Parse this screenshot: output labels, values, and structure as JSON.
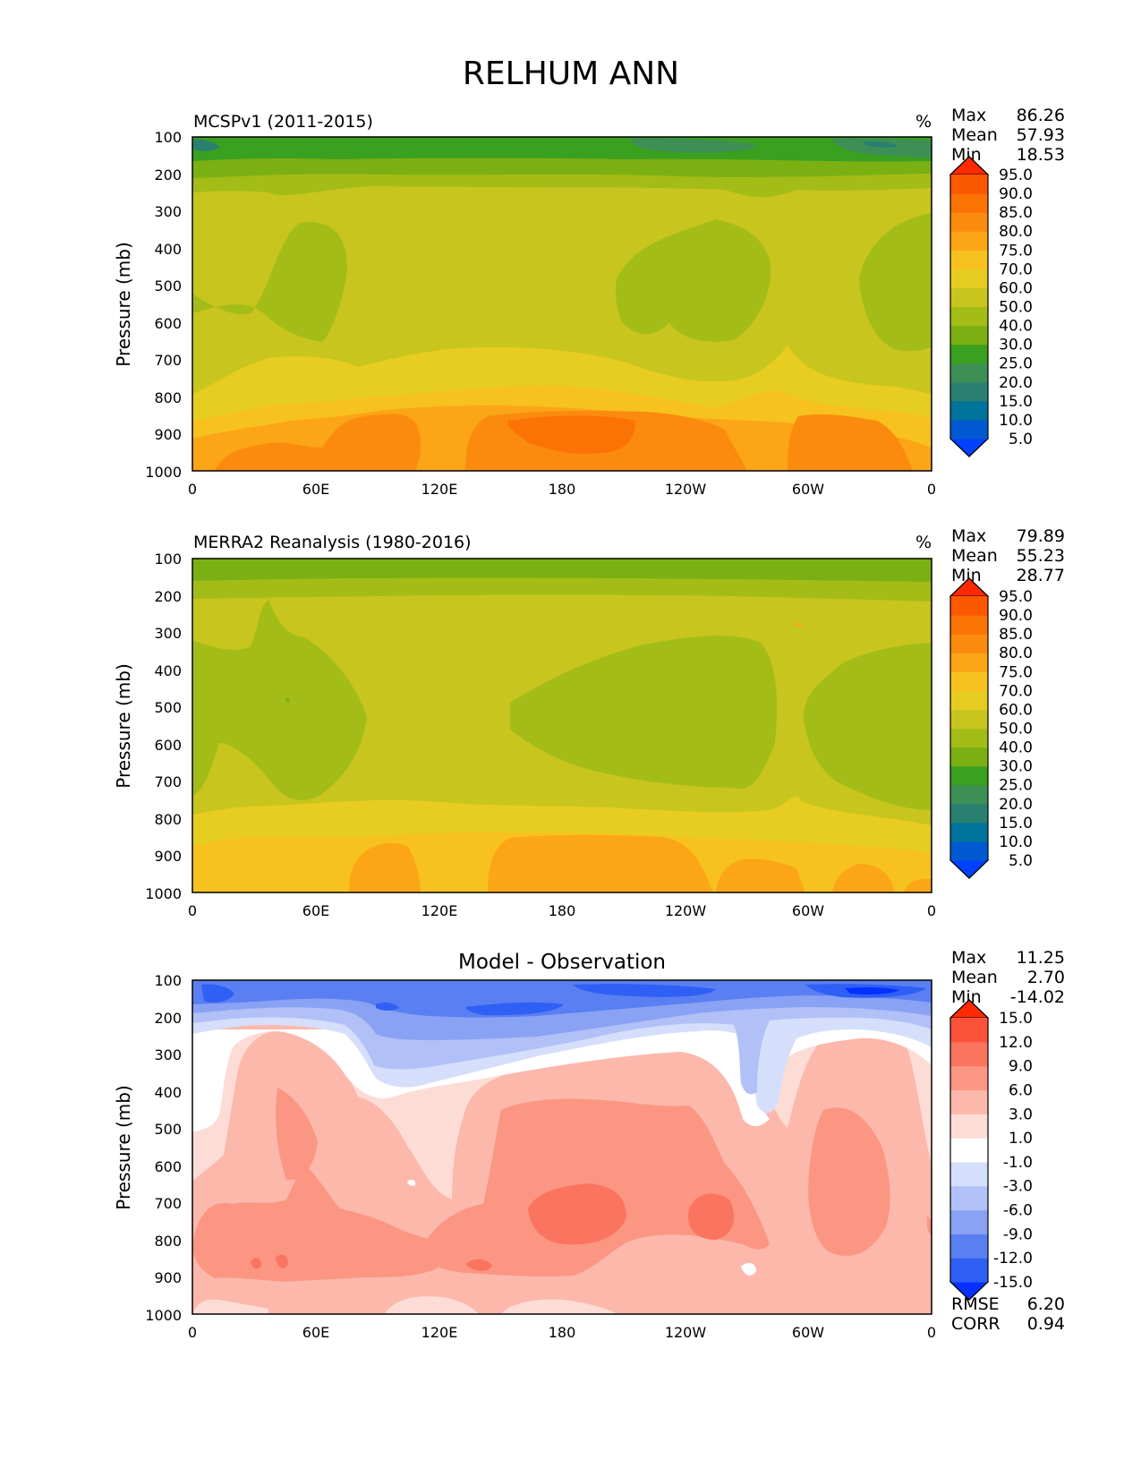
{
  "title": "RELHUM ANN",
  "stat_labels": {
    "max": "Max",
    "mean": "Mean",
    "min": "Min",
    "rmse": "RMSE",
    "corr": "CORR"
  },
  "chart_data": [
    {
      "type": "heatmap",
      "subtitle": "MCSPv1 (2011-2015)",
      "units": "%",
      "ylabel": "Pressure (mb)",
      "x_ticks": [
        "0",
        "60E",
        "120E",
        "180",
        "120W",
        "60W",
        "0"
      ],
      "y_ticks": [
        "100",
        "200",
        "300",
        "400",
        "500",
        "600",
        "700",
        "800",
        "900",
        "1000"
      ],
      "stats": {
        "max": "86.26",
        "mean": "57.93",
        "min": "18.53"
      },
      "levels": [
        "5.0",
        "10.0",
        "15.0",
        "20.0",
        "25.0",
        "30.0",
        "40.0",
        "50.0",
        "60.0",
        "70.0",
        "75.0",
        "80.0",
        "85.0",
        "90.0",
        "95.0"
      ],
      "colors": [
        "#0040ff",
        "#0059d0",
        "#00749b",
        "#2a8070",
        "#3d8f55",
        "#3aa020",
        "#7bb013",
        "#a4bc17",
        "#c8c51e",
        "#e7cc22",
        "#f7c21f",
        "#fba517",
        "#fb8b0e",
        "#fb7205",
        "#fb5800",
        "#ff2a00"
      ]
    },
    {
      "type": "heatmap",
      "subtitle": "MERRA2 Reanalysis (1980-2016)",
      "units": "%",
      "ylabel": "Pressure (mb)",
      "x_ticks": [
        "0",
        "60E",
        "120E",
        "180",
        "120W",
        "60W",
        "0"
      ],
      "y_ticks": [
        "100",
        "200",
        "300",
        "400",
        "500",
        "600",
        "700",
        "800",
        "900",
        "1000"
      ],
      "stats": {
        "max": "79.89",
        "mean": "55.23",
        "min": "28.77"
      },
      "levels": [
        "5.0",
        "10.0",
        "15.0",
        "20.0",
        "25.0",
        "30.0",
        "40.0",
        "50.0",
        "60.0",
        "70.0",
        "75.0",
        "80.0",
        "85.0",
        "90.0",
        "95.0"
      ],
      "colors": [
        "#0040ff",
        "#0059d0",
        "#00749b",
        "#2a8070",
        "#3d8f55",
        "#3aa020",
        "#7bb013",
        "#a4bc17",
        "#c8c51e",
        "#e7cc22",
        "#f7c21f",
        "#fba517",
        "#fb8b0e",
        "#fb7205",
        "#fb5800",
        "#ff2a00"
      ]
    },
    {
      "type": "heatmap",
      "title": "Model - Observation",
      "ylabel": "Pressure (mb)",
      "x_ticks": [
        "0",
        "60E",
        "120E",
        "180",
        "120W",
        "60W",
        "0"
      ],
      "y_ticks": [
        "100",
        "200",
        "300",
        "400",
        "500",
        "600",
        "700",
        "800",
        "900",
        "1000"
      ],
      "stats": {
        "max": "11.25",
        "mean": "2.70",
        "min": "-14.02",
        "rmse": "6.20",
        "corr": "0.94"
      },
      "levels": [
        "-15.0",
        "-12.0",
        "-9.0",
        "-6.0",
        "-3.0",
        "-1.0",
        "1.0",
        "3.0",
        "6.0",
        "9.0",
        "12.0",
        "15.0"
      ],
      "colors": [
        "#0530ff",
        "#2f5ff4",
        "#5a7ff2",
        "#8aa2f4",
        "#b1c0f6",
        "#d5dffb",
        "#ffffff",
        "#fddcd6",
        "#fcb8ab",
        "#fb9683",
        "#fb7460",
        "#fc5239",
        "#ff2a00"
      ]
    }
  ]
}
